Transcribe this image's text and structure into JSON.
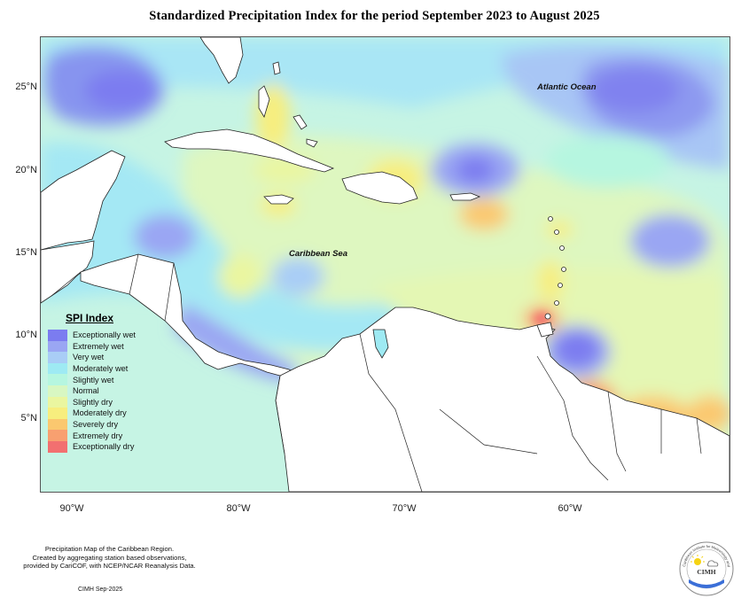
{
  "title": "Standardized Precipitation Index for the period September 2023 to August 2025",
  "map": {
    "labels": {
      "atlantic": "Atlantic Ocean",
      "caribbean": "Caribbean Sea"
    },
    "lon_ticks": [
      "90°W",
      "80°W",
      "70°W",
      "60°W"
    ],
    "lat_ticks": [
      "25°N",
      "20°N",
      "15°N",
      "10°N",
      "5°N"
    ],
    "extent": {
      "lon_min": -92,
      "lon_max": -50,
      "lat_min": 1,
      "lat_max": 28.5
    }
  },
  "legend": {
    "title": "SPI Index",
    "items": [
      {
        "label": "Exceptionally wet",
        "color": "#7b7cf0"
      },
      {
        "label": "Extremely wet",
        "color": "#9aa6f3"
      },
      {
        "label": "Very wet",
        "color": "#a9cdf6"
      },
      {
        "label": "Moderately wet",
        "color": "#9eeaf3"
      },
      {
        "label": "Slightly wet",
        "color": "#b6f6e0"
      },
      {
        "label": "Normal",
        "color": "#d8f7c2"
      },
      {
        "label": "Slightly dry",
        "color": "#eaf6a0"
      },
      {
        "label": "Moderately dry",
        "color": "#f7ee7e"
      },
      {
        "label": "Severely dry",
        "color": "#fbc86f"
      },
      {
        "label": "Extremely dry",
        "color": "#f8a070"
      },
      {
        "label": "Exceptionally dry",
        "color": "#f27070"
      }
    ]
  },
  "credit": {
    "lines": [
      "Precipitation Map of the Caribbean Region.",
      "Created by aggregating station based observations,",
      "provided by CariCOF, with NCEP/NCAR Reanalysis Data."
    ],
    "footer": "CIMH Sep-2025",
    "logo_text": "CIMH",
    "logo_ring_text": "Caribbean Institute for Meteorology and Hydrology"
  }
}
